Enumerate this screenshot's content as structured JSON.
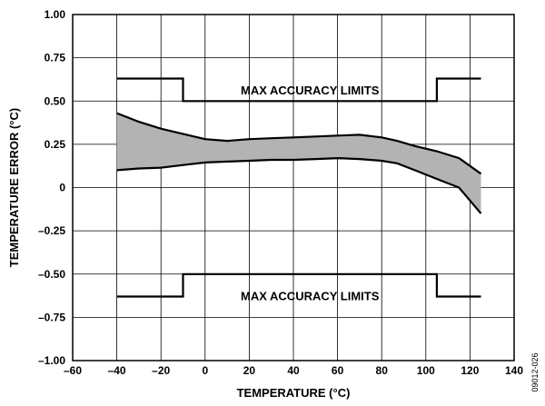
{
  "chart_data": {
    "type": "area",
    "xlabel": "TEMPERATURE (°C)",
    "ylabel": "TEMPERATURE ERROR (°C)",
    "xlim": [
      -60,
      140
    ],
    "ylim": [
      -1.0,
      1.0
    ],
    "x_ticks": [
      -60,
      -40,
      -20,
      0,
      20,
      40,
      60,
      80,
      100,
      120,
      140
    ],
    "x_tick_labels": [
      "–60",
      "–40",
      "–20",
      "0",
      "20",
      "40",
      "60",
      "80",
      "100",
      "120",
      "140"
    ],
    "y_ticks": [
      1.0,
      0.75,
      0.5,
      0.25,
      0,
      -0.25,
      -0.5,
      -0.75,
      -1.0
    ],
    "y_tick_labels": [
      "1.00",
      "0.75",
      "0.50",
      "0.25",
      "0",
      "–0.25",
      "–0.50",
      "–0.75",
      "–1.00"
    ],
    "grid": true,
    "band": {
      "upper": {
        "x": [
          -40,
          -30,
          -20,
          -10,
          0,
          10,
          20,
          30,
          40,
          50,
          60,
          70,
          80,
          87,
          95,
          105,
          115,
          125
        ],
        "y": [
          0.43,
          0.38,
          0.34,
          0.31,
          0.28,
          0.27,
          0.28,
          0.285,
          0.29,
          0.295,
          0.3,
          0.305,
          0.29,
          0.27,
          0.24,
          0.21,
          0.17,
          0.08
        ]
      },
      "lower": {
        "x": [
          -40,
          -30,
          -20,
          -10,
          0,
          10,
          20,
          30,
          40,
          50,
          60,
          70,
          80,
          87,
          95,
          105,
          115,
          125
        ],
        "y": [
          0.1,
          0.11,
          0.115,
          0.13,
          0.145,
          0.15,
          0.155,
          0.16,
          0.16,
          0.165,
          0.17,
          0.165,
          0.155,
          0.14,
          0.1,
          0.05,
          0.0,
          -0.15
        ]
      },
      "fill_color": "#b3b3b3"
    },
    "limits": [
      {
        "x": [
          -40,
          -10,
          -10,
          105,
          105,
          125
        ],
        "y": [
          0.63,
          0.63,
          0.5,
          0.5,
          0.63,
          0.63
        ]
      },
      {
        "x": [
          -40,
          -10,
          -10,
          105,
          105,
          125
        ],
        "y": [
          -0.63,
          -0.63,
          -0.5,
          -0.5,
          -0.63,
          -0.63
        ]
      }
    ],
    "annotations": [
      {
        "text": "MAX ACCURACY LIMITS",
        "x": 47.5,
        "y": 0.565
      },
      {
        "text": "MAX ACCURACY LIMITS",
        "x": 47.5,
        "y": -0.625
      }
    ],
    "figure_id": "09012-026"
  }
}
